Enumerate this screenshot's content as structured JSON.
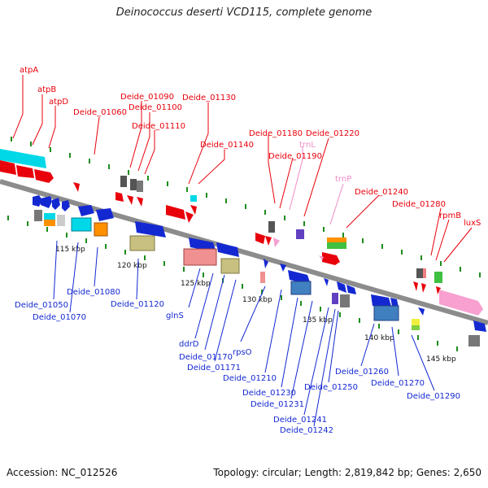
{
  "title": "Deinococcus deserti VCD115, complete genome",
  "footer": {
    "accession": "Accession: NC_012526",
    "summary": "Topology: circular; Length: 2,819,842 bp; Genes: 2,650"
  },
  "colors": {
    "red": "#e8000b",
    "blue": "#1428d2",
    "pink_label": "#f08cc8",
    "backbone": "#8c8c8c",
    "tick": "#1e8c1e"
  },
  "scale_labels": [
    "115 kbp",
    "120 kbp",
    "125 kbp",
    "130 kbp",
    "135 kbp",
    "140 kbp",
    "145 kbp"
  ],
  "top_labels": [
    "atpA",
    "atpB",
    "atpD",
    "Deide_01060",
    "Deide_01090",
    "Deide_01100",
    "Deide_01110",
    "Deide_01130",
    "Deide_01140",
    "Deide_01180",
    "Deide_01220",
    "Deide_01190",
    "trnL",
    "trnP",
    "Deide_01240",
    "Deide_01280",
    "rpmB",
    "luxS"
  ],
  "bottom_labels": [
    "Deide_01050",
    "Deide_01070",
    "Deide_01080",
    "Deide_01120",
    "glnS",
    "ddrD",
    "Deide_01170",
    "Deide_01171",
    "rpsO",
    "Deide_01210",
    "Deide_01230",
    "Deide_01231",
    "Deide_01250",
    "Deide_01241",
    "Deide_01242",
    "Deide_01260",
    "Deide_01270",
    "Deide_01290"
  ]
}
